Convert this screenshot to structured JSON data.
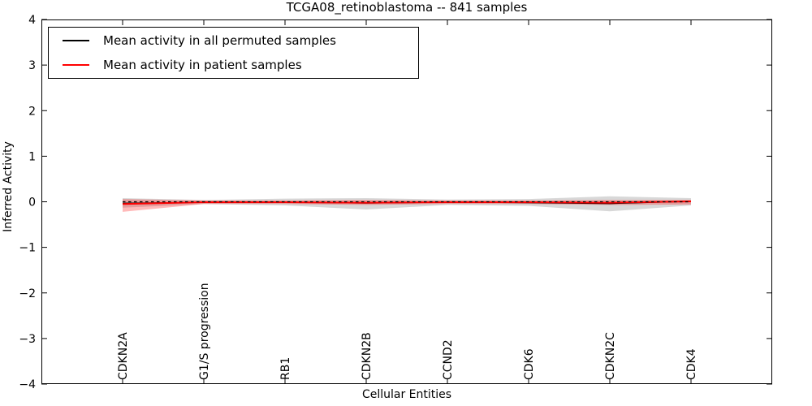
{
  "figure": {
    "background": "#ffffff",
    "frame_color": "#000000"
  },
  "legend": {
    "position": "upper left",
    "items": [
      {
        "label": "Mean activity in all permuted samples",
        "color": "#000000"
      },
      {
        "label": "Mean activity in patient samples",
        "color": "#ff0000"
      }
    ]
  },
  "chart_data": {
    "type": "line",
    "title": "TCGA08_retinoblastoma -- 841 samples",
    "xlabel": "Cellular Entities",
    "ylabel": "Inferred Activity",
    "categories": [
      "CDKN2A",
      "G1/S progression",
      "RB1",
      "CDKN2B",
      "CCND2",
      "CDK6",
      "CDKN2C",
      "CDK4"
    ],
    "xlim": [
      -1,
      8
    ],
    "ylim": [
      -4,
      4
    ],
    "yticks": [
      -4,
      -3,
      -2,
      -1,
      0,
      1,
      2,
      3,
      4
    ],
    "ytick_labels": [
      "−4",
      "−3",
      "−2",
      "−1",
      "0",
      "1",
      "2",
      "3",
      "4"
    ],
    "grid": false,
    "tick_direction": "in",
    "legend_position": "upper left",
    "series": [
      {
        "name": "Mean activity in all permuted samples",
        "color": "#000000",
        "style": "solid",
        "width": 1.2,
        "values": [
          -0.03,
          -0.01,
          -0.01,
          -0.03,
          -0.01,
          -0.02,
          -0.04,
          0.01
        ]
      },
      {
        "name": "Mean activity in patient samples",
        "color": "#ff0000",
        "style": "solid",
        "width": 2,
        "values": [
          -0.05,
          -0.01,
          -0.01,
          -0.02,
          -0.01,
          -0.01,
          -0.02,
          0.01
        ]
      }
    ],
    "bands": [
      {
        "name": "permuted-samples-std-band",
        "color": "#999999",
        "opacity": 0.38,
        "lower": [
          -0.13,
          -0.05,
          -0.08,
          -0.17,
          -0.07,
          -0.09,
          -0.21,
          -0.08
        ],
        "upper": [
          0.08,
          0.04,
          0.07,
          0.08,
          0.05,
          0.06,
          0.12,
          0.08
        ]
      },
      {
        "name": "patient-samples-std-band",
        "color": "#ff0000",
        "opacity": 0.27,
        "lower": [
          -0.22,
          -0.05,
          -0.05,
          -0.07,
          -0.05,
          -0.05,
          -0.07,
          -0.06
        ],
        "upper": [
          0.06,
          0.03,
          0.03,
          0.04,
          0.03,
          0.03,
          0.04,
          0.04
        ]
      }
    ],
    "zero_line": {
      "y": 0,
      "color": "#000000",
      "style": "dashed"
    }
  }
}
